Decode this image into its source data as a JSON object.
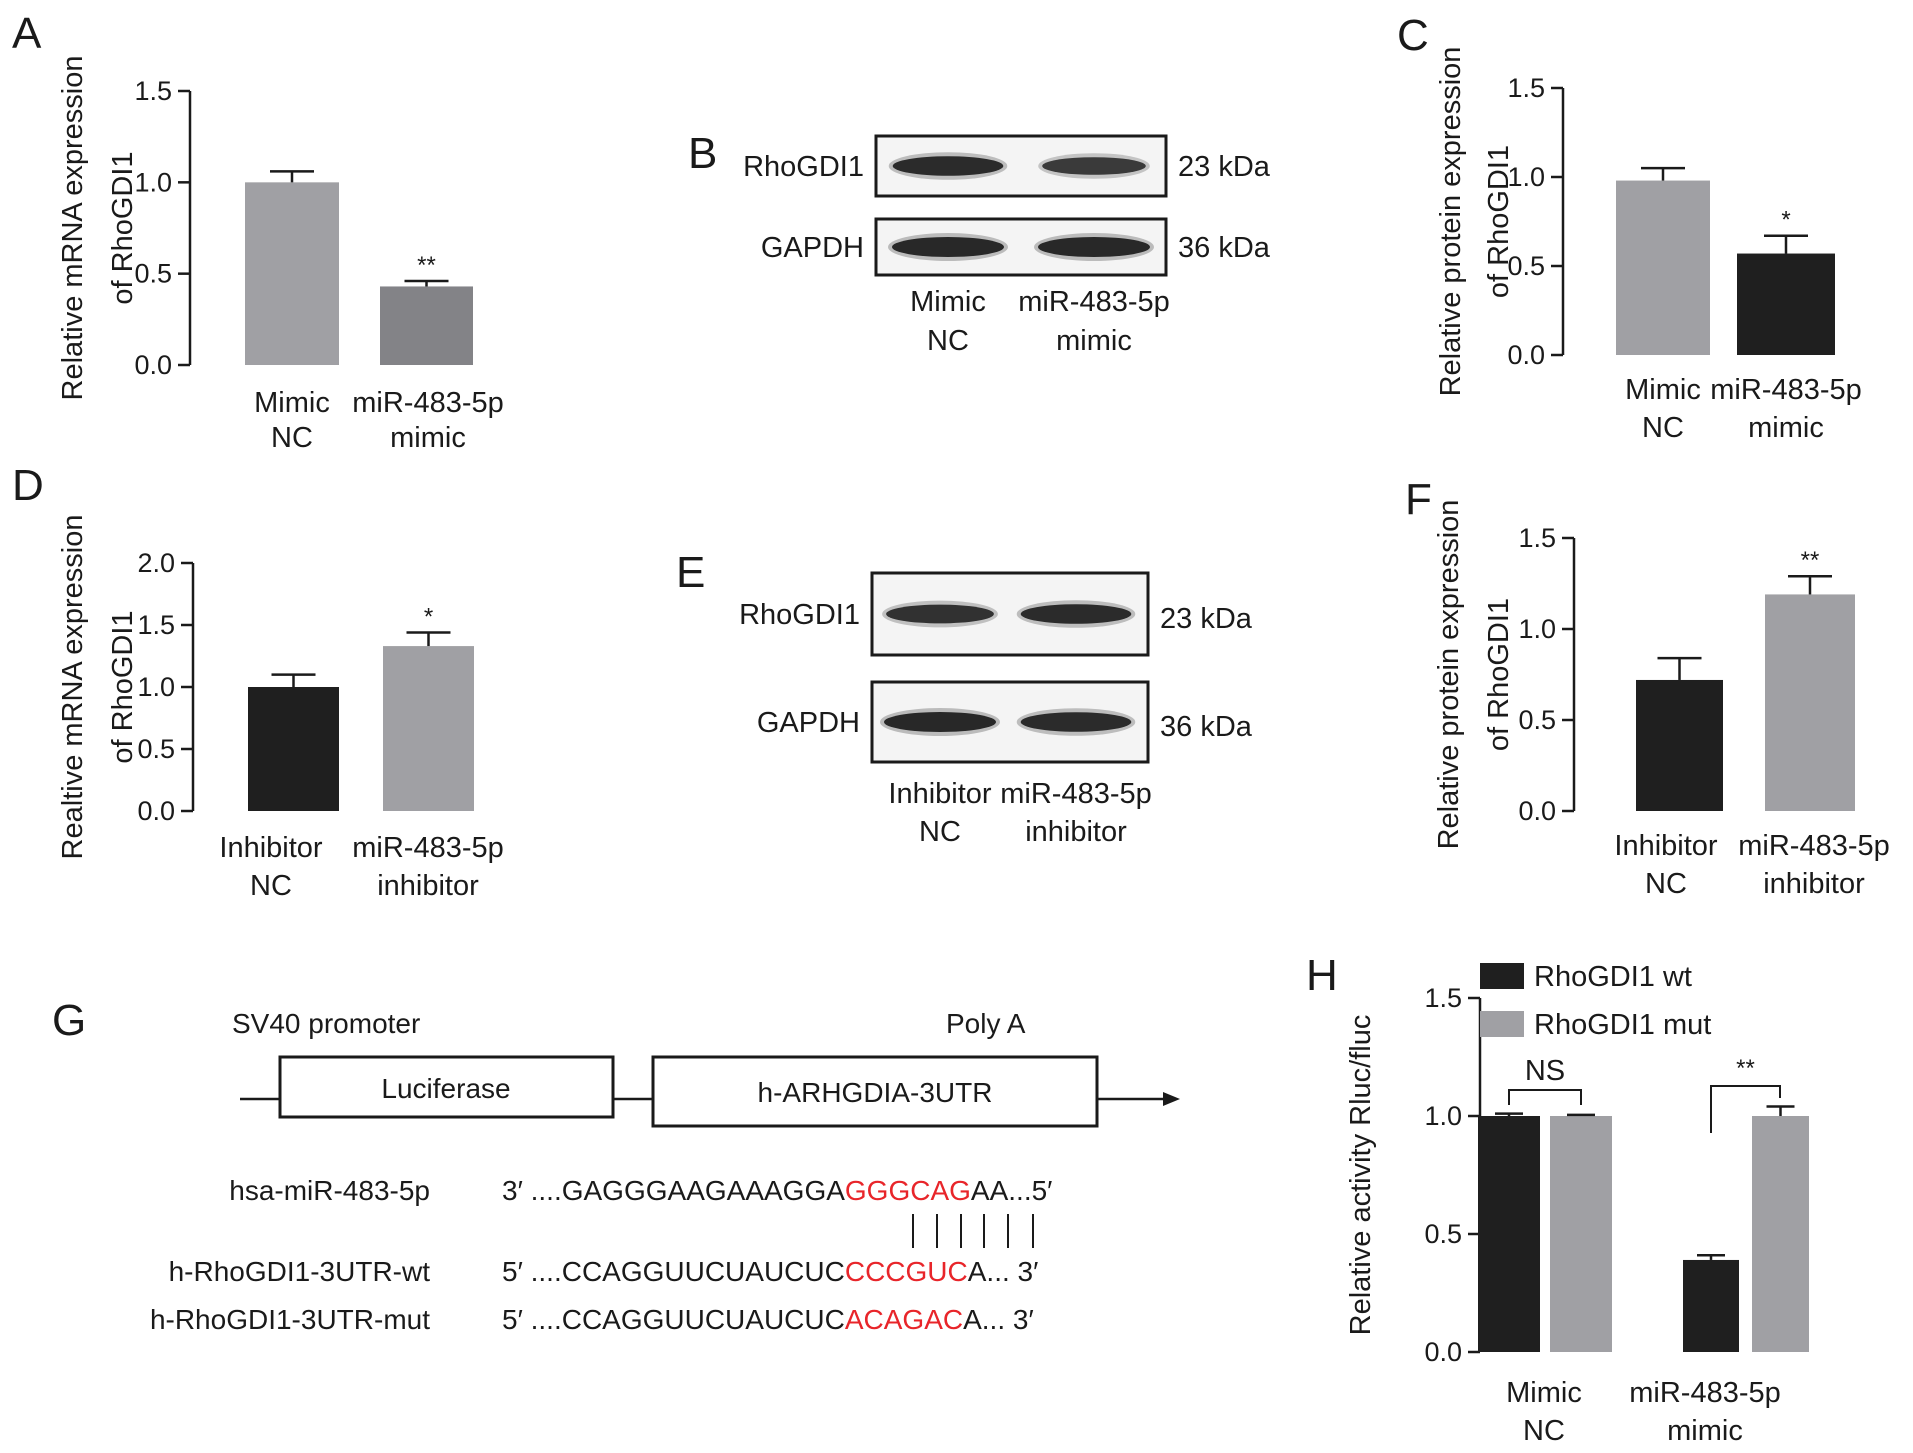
{
  "panels": {
    "A": "A",
    "B": "B",
    "C": "C",
    "D": "D",
    "E": "E",
    "F": "F",
    "G": "G",
    "H": "H"
  },
  "colors": {
    "light_gray": "#a0a0a4",
    "mid_gray": "#838387",
    "dark": "#1f1f1f",
    "highlight_red": "#e8252a"
  },
  "chart_data": [
    {
      "id": "A",
      "type": "bar",
      "ylabel": [
        "Relative mRNA expression",
        "of RhoGDI1"
      ],
      "ylim": [
        0,
        1.5
      ],
      "yticks": [
        "0.0",
        "0.5",
        "1.0",
        "1.5"
      ],
      "categories": [
        [
          "Mimic",
          "NC"
        ],
        [
          "miR-483-5p",
          "mimic"
        ]
      ],
      "values": [
        1.0,
        0.43
      ],
      "errors": [
        0.06,
        0.03
      ],
      "bar_colors": [
        "#a0a0a4",
        "#838387"
      ],
      "significance": [
        "",
        "**"
      ]
    },
    {
      "id": "C",
      "type": "bar",
      "ylabel": [
        "Relative protein expression",
        "of RhoGDI1"
      ],
      "ylim": [
        0,
        1.5
      ],
      "yticks": [
        "0.0",
        "0.5",
        "1.0",
        "1.5"
      ],
      "categories": [
        [
          "Mimic",
          "NC"
        ],
        [
          "miR-483-5p",
          "mimic"
        ]
      ],
      "values": [
        0.98,
        0.57
      ],
      "errors": [
        0.07,
        0.1
      ],
      "bar_colors": [
        "#a0a0a4",
        "#1f1f1f"
      ],
      "significance": [
        "",
        "*"
      ]
    },
    {
      "id": "D",
      "type": "bar",
      "ylabel": [
        "Realtive mRNA expression",
        "of RhoGDI1"
      ],
      "ylim": [
        0,
        2.0
      ],
      "yticks": [
        "0.0",
        "0.5",
        "1.0",
        "1.5",
        "2.0"
      ],
      "categories": [
        [
          "Inhibitor",
          "NC"
        ],
        [
          "miR-483-5p",
          "inhibitor"
        ]
      ],
      "values": [
        1.0,
        1.33
      ],
      "errors": [
        0.1,
        0.11
      ],
      "bar_colors": [
        "#1f1f1f",
        "#a0a0a4"
      ],
      "significance": [
        "",
        "*"
      ]
    },
    {
      "id": "F",
      "type": "bar",
      "ylabel": [
        "Relative protein expression",
        "of RhoGDI1"
      ],
      "ylim": [
        0,
        1.5
      ],
      "yticks": [
        "0.0",
        "0.5",
        "1.0",
        "1.5"
      ],
      "categories": [
        [
          "Inhibitor",
          "NC"
        ],
        [
          "miR-483-5p",
          "inhibitor"
        ]
      ],
      "values": [
        0.72,
        1.19
      ],
      "errors": [
        0.12,
        0.1
      ],
      "bar_colors": [
        "#1f1f1f",
        "#a0a0a4"
      ],
      "significance": [
        "",
        "**"
      ]
    },
    {
      "id": "H",
      "type": "bar",
      "ylabel": [
        "Relative activity Rluc/fluc"
      ],
      "ylim": [
        0,
        1.5
      ],
      "yticks": [
        "0.0",
        "0.5",
        "1.0",
        "1.5"
      ],
      "categories": [
        [
          "Mimic",
          "NC"
        ],
        [
          "miR-483-5p",
          "mimic"
        ]
      ],
      "series": [
        {
          "name": "RhoGDI1 wt",
          "color": "#1f1f1f",
          "values": [
            1.0,
            0.39
          ],
          "errors": [
            0.01,
            0.02
          ]
        },
        {
          "name": "RhoGDI1 mut",
          "color": "#a0a0a4",
          "values": [
            1.0,
            1.0
          ],
          "errors": [
            0.005,
            0.04
          ]
        }
      ],
      "comparisons": [
        "NS",
        "**"
      ],
      "legend_position": "top"
    }
  ],
  "western_blots": [
    {
      "id": "B",
      "rows": [
        {
          "label": "RhoGDI1",
          "size": "23 kDa",
          "intensities": [
            0.95,
            0.7
          ]
        },
        {
          "label": "GAPDH",
          "size": "36 kDa",
          "intensities": [
            1.0,
            1.0
          ]
        }
      ],
      "lanes": [
        [
          "Mimic",
          "NC"
        ],
        [
          "miR-483-5p",
          "mimic"
        ]
      ]
    },
    {
      "id": "E",
      "rows": [
        {
          "label": "RhoGDI1",
          "size": "23 kDa",
          "intensities": [
            0.85,
            0.95
          ]
        },
        {
          "label": "GAPDH",
          "size": "36 kDa",
          "intensities": [
            1.0,
            0.95
          ]
        }
      ],
      "lanes": [
        [
          "Inhibitor",
          "NC"
        ],
        [
          "miR-483-5p",
          "inhibitor"
        ]
      ]
    }
  ],
  "construct": {
    "promoter": "SV40 promoter",
    "polya": "Poly A",
    "box1": "Luciferase",
    "box2": "h-ARHGDIA-3UTR"
  },
  "sequences": [
    {
      "name": "hsa-miR-483-5p",
      "prefix": "3′ ....GAGGGAAGAAAGGA",
      "seed": "GGGCAG",
      "suffix": "AA...5′"
    },
    {
      "name": "h-RhoGDI1-3UTR-wt",
      "prefix": "5′ ....CCAGGUUCUAUCUC",
      "seed": "CCCGUC",
      "suffix": "A... 3′"
    },
    {
      "name": "h-RhoGDI1-3UTR-mut",
      "prefix": "5′ ....CCAGGUUCUAUCUC",
      "seed": "ACAGAC",
      "suffix": "A... 3′"
    }
  ]
}
